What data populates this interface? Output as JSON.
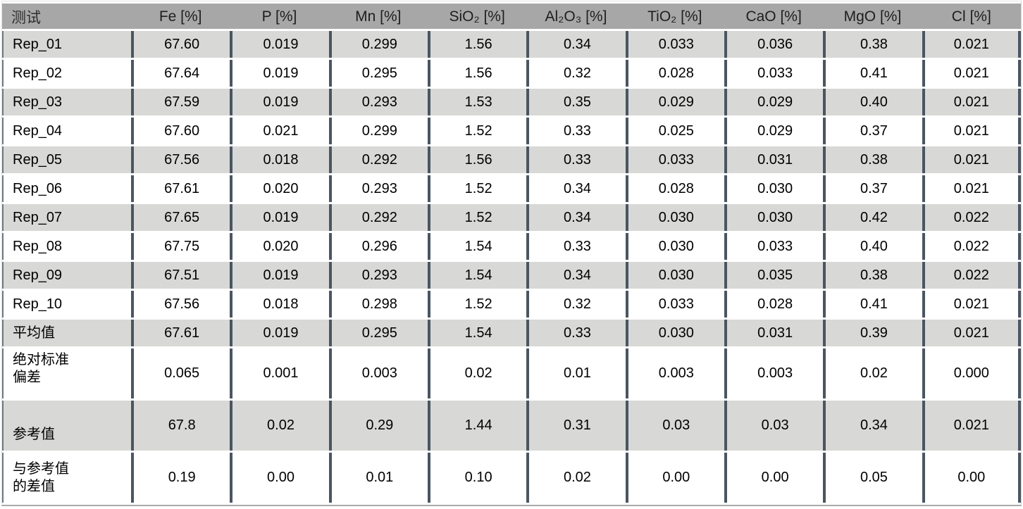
{
  "colors": {
    "header_bg": "#a7a7a7",
    "row_shaded_bg": "#d8d8d6",
    "separator": "#4a5661",
    "text": "#000000"
  },
  "chart_data": {
    "type": "table",
    "title": "",
    "columns": [
      "测试",
      "Fe [%]",
      "P [%]",
      "Mn [%]",
      "SiO₂ [%]",
      "Al₂O₃ [%]",
      "TiO₂ [%]",
      "CaO [%]",
      "MgO [%]",
      "Cl [%]"
    ],
    "rows": [
      {
        "kind": "rep",
        "label": "Rep_01",
        "values": [
          "67.60",
          "0.019",
          "0.299",
          "1.56",
          "0.34",
          "0.033",
          "0.036",
          "0.38",
          "0.021"
        ]
      },
      {
        "kind": "rep",
        "label": "Rep_02",
        "values": [
          "67.64",
          "0.019",
          "0.295",
          "1.56",
          "0.32",
          "0.028",
          "0.033",
          "0.41",
          "0.021"
        ]
      },
      {
        "kind": "rep",
        "label": "Rep_03",
        "values": [
          "67.59",
          "0.019",
          "0.293",
          "1.53",
          "0.35",
          "0.029",
          "0.029",
          "0.40",
          "0.021"
        ]
      },
      {
        "kind": "rep",
        "label": "Rep_04",
        "values": [
          "67.60",
          "0.021",
          "0.299",
          "1.52",
          "0.33",
          "0.025",
          "0.029",
          "0.37",
          "0.021"
        ]
      },
      {
        "kind": "rep",
        "label": "Rep_05",
        "values": [
          "67.56",
          "0.018",
          "0.292",
          "1.56",
          "0.33",
          "0.033",
          "0.031",
          "0.38",
          "0.021"
        ]
      },
      {
        "kind": "rep",
        "label": "Rep_06",
        "values": [
          "67.61",
          "0.020",
          "0.293",
          "1.52",
          "0.34",
          "0.028",
          "0.030",
          "0.37",
          "0.021"
        ]
      },
      {
        "kind": "rep",
        "label": "Rep_07",
        "values": [
          "67.65",
          "0.019",
          "0.292",
          "1.52",
          "0.34",
          "0.030",
          "0.030",
          "0.42",
          "0.022"
        ]
      },
      {
        "kind": "rep",
        "label": "Rep_08",
        "values": [
          "67.75",
          "0.020",
          "0.296",
          "1.54",
          "0.33",
          "0.030",
          "0.033",
          "0.40",
          "0.022"
        ]
      },
      {
        "kind": "rep",
        "label": "Rep_09",
        "values": [
          "67.51",
          "0.019",
          "0.293",
          "1.54",
          "0.34",
          "0.030",
          "0.035",
          "0.38",
          "0.022"
        ]
      },
      {
        "kind": "rep",
        "label": "Rep_10",
        "values": [
          "67.56",
          "0.018",
          "0.298",
          "1.52",
          "0.32",
          "0.033",
          "0.028",
          "0.41",
          "0.021"
        ]
      },
      {
        "kind": "mean",
        "label": "平均值",
        "values": [
          "67.61",
          "0.019",
          "0.295",
          "1.54",
          "0.33",
          "0.030",
          "0.031",
          "0.39",
          "0.021"
        ]
      },
      {
        "kind": "sd",
        "label": "绝对标准\n偏差",
        "values": [
          "0.065",
          "0.001",
          "0.003",
          "0.02",
          "0.01",
          "0.003",
          "0.003",
          "0.02",
          "0.000"
        ]
      },
      {
        "kind": "ref",
        "label": "参考值",
        "values": [
          "67.8",
          "0.02",
          "0.29",
          "1.44",
          "0.31",
          "0.03",
          "0.03",
          "0.34",
          "0.021"
        ]
      },
      {
        "kind": "diff",
        "label": "与参考值\n的差值",
        "values": [
          "0.19",
          "0.00",
          "0.01",
          "0.10",
          "0.02",
          "0.00",
          "0.00",
          "0.05",
          "0.00"
        ]
      }
    ]
  }
}
